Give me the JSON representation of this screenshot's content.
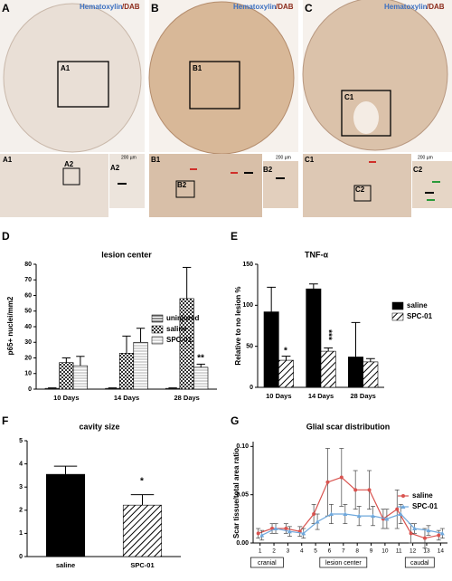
{
  "figure": {
    "stain": [
      "Hematoxylin",
      "/DAB"
    ],
    "panel_labels": [
      "A",
      "B",
      "C"
    ],
    "insets": [
      "A1",
      "A2",
      "B1",
      "B2",
      "C1",
      "C2"
    ],
    "scale_bar": "200 µm"
  },
  "chart_data": [
    {
      "type": "bar",
      "panel_label": "D",
      "title": "lesion center",
      "y_label": "p65+ nuclei/mm2",
      "categories": [
        "10 Days",
        "14 Days",
        "28 Days"
      ],
      "series": [
        {
          "name": "uninjured",
          "color": "#555555",
          "hatch": "horizontal",
          "values": [
            0.5,
            0.5,
            0.5
          ],
          "errors": [
            0.3,
            0.3,
            0.3
          ]
        },
        {
          "name": "saline",
          "color": "#333333",
          "hatch": "checker",
          "values": [
            17,
            23,
            58
          ],
          "errors": [
            3,
            11,
            20
          ]
        },
        {
          "name": "SPC-01",
          "color": "#888888",
          "hatch": "horizontal-light",
          "values": [
            15,
            30,
            14
          ],
          "errors": [
            6,
            9,
            2
          ]
        }
      ],
      "ylim": [
        0,
        80
      ],
      "yticks": [
        0,
        10,
        20,
        30,
        40,
        50,
        60,
        70,
        80
      ],
      "legend": "center right",
      "annotations": [
        "**"
      ]
    },
    {
      "type": "bar",
      "panel_label": "E",
      "title": "TNF-α",
      "y_label": "Relative to no lesion %",
      "categories": [
        "10 Days",
        "14 Days",
        "28 Days"
      ],
      "series": [
        {
          "name": "saline",
          "color": "#000000",
          "hatch": "none",
          "values": [
            92,
            120,
            37
          ],
          "errors": [
            30,
            6,
            42
          ]
        },
        {
          "name": "SPC-01",
          "color": "#000000",
          "hatch": "diagonal",
          "values": [
            33,
            44,
            31
          ],
          "errors": [
            5,
            4,
            4
          ]
        }
      ],
      "ylim": [
        0,
        150
      ],
      "yticks": [
        0,
        50,
        100,
        150
      ],
      "legend": "outside right",
      "annotations": [
        "*",
        "***"
      ]
    },
    {
      "type": "bar",
      "panel_label": "F",
      "title": "cavity size",
      "categories": [
        "saline",
        "SPC-01"
      ],
      "values": [
        3.55,
        2.22
      ],
      "errors": [
        0.35,
        0.45
      ],
      "colors": [
        "#000000",
        "#000000"
      ],
      "hatches": [
        "none",
        "diagonal"
      ],
      "ylim": [
        0,
        5
      ],
      "yticks": [
        0,
        1,
        2,
        3,
        4,
        5
      ],
      "annotations": [
        "*"
      ]
    },
    {
      "type": "line",
      "panel_label": "G",
      "title": "Glial scar distribution",
      "y_label": "Scar tissue/total area ratio",
      "x": [
        1,
        2,
        3,
        4,
        5,
        6,
        7,
        8,
        9,
        10,
        11,
        12,
        13,
        14
      ],
      "series": [
        {
          "name": "saline",
          "color": "#d9534f",
          "values": [
            0.01,
            0.015,
            0.015,
            0.012,
            0.03,
            0.063,
            0.068,
            0.055,
            0.055,
            0.025,
            0.035,
            0.01,
            0.005,
            0.008
          ],
          "errors": [
            0.005,
            0.005,
            0.005,
            0.005,
            0.01,
            0.035,
            0.03,
            0.02,
            0.02,
            0.01,
            0.02,
            0.01,
            0.01,
            0.005
          ]
        },
        {
          "name": "SPC-01",
          "color": "#6fa8dc",
          "values": [
            0.008,
            0.015,
            0.012,
            0.01,
            0.022,
            0.03,
            0.03,
            0.028,
            0.028,
            0.025,
            0.03,
            0.015,
            0.013,
            0.01
          ],
          "errors": [
            0.005,
            0.005,
            0.005,
            0.005,
            0.008,
            0.01,
            0.01,
            0.01,
            0.01,
            0.01,
            0.01,
            0.005,
            0.005,
            0.005
          ]
        }
      ],
      "xlim": [
        0.5,
        14.5
      ],
      "xticks": [
        1,
        2,
        3,
        4,
        5,
        6,
        7,
        8,
        9,
        10,
        11,
        12,
        13,
        14
      ],
      "ylim": [
        0,
        0.105
      ],
      "yticks": [
        {
          "value": 0,
          "label": "0.00"
        },
        {
          "value": 0.05,
          "label": "0.05"
        },
        {
          "value": 0.1,
          "label": "0.10"
        }
      ],
      "legend": "upper right",
      "regions": [
        "cranial",
        "lesion center",
        "caudal"
      ]
    }
  ]
}
